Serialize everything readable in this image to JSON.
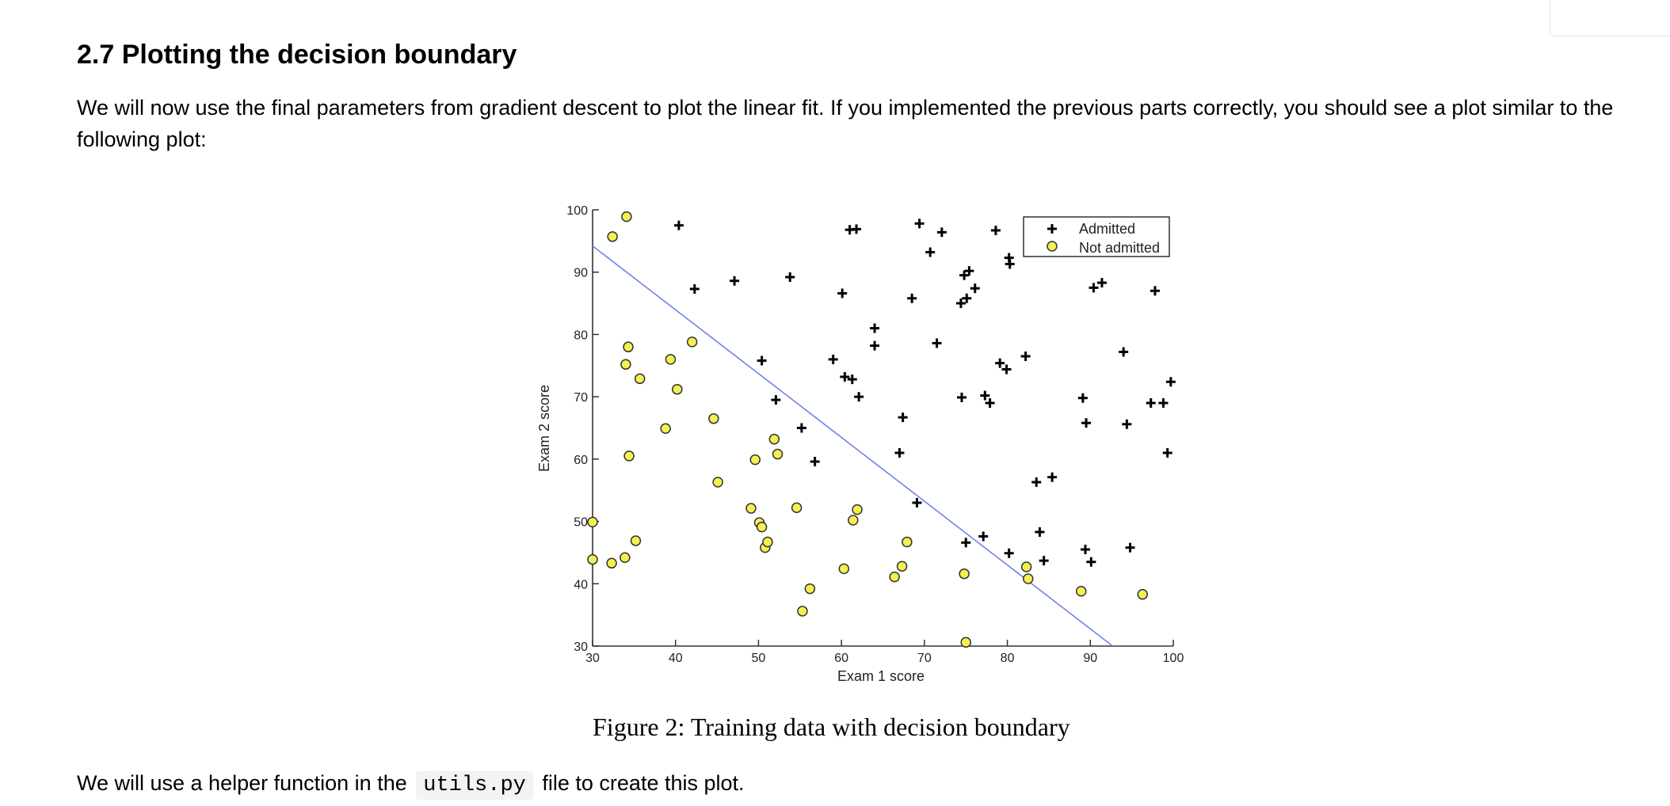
{
  "section": {
    "title": "2.7 Plotting the decision boundary",
    "intro": "We will now use the final parameters from gradient descent to plot the linear fit. If you implemented the previous parts correctly, you should see a plot similar to the following plot:"
  },
  "figure": {
    "caption": "Figure 2: Training data with decision boundary"
  },
  "footer": {
    "before": "We will use a helper function in the",
    "code": "utils.py",
    "after": "file to create this plot."
  },
  "chart_data": {
    "type": "scatter",
    "xlabel": "Exam 1 score",
    "ylabel": "Exam 2 score",
    "xlim": [
      30,
      100
    ],
    "ylim": [
      30,
      100
    ],
    "xticks": [
      30,
      40,
      50,
      60,
      70,
      80,
      90,
      100
    ],
    "yticks": [
      30,
      40,
      50,
      60,
      70,
      80,
      90,
      100
    ],
    "grid": false,
    "legend_position": "top-right",
    "colors": {
      "admitted": "#000000",
      "not_admitted_fill": "#f5f051",
      "not_admitted_edge": "#333333",
      "boundary": "#6f85ee"
    },
    "series": [
      {
        "name": "Admitted",
        "marker": "plus",
        "points": [
          [
            40.4,
            97.5
          ],
          [
            42.3,
            87.3
          ],
          [
            47.1,
            88.6
          ],
          [
            50.4,
            75.8
          ],
          [
            52.1,
            69.5
          ],
          [
            53.8,
            89.2
          ],
          [
            55.2,
            65.0
          ],
          [
            56.8,
            59.6
          ],
          [
            59.0,
            76.0
          ],
          [
            60.1,
            86.6
          ],
          [
            60.4,
            73.2
          ],
          [
            61.3,
            72.8
          ],
          [
            61.0,
            96.8
          ],
          [
            61.8,
            96.9
          ],
          [
            62.1,
            70.0
          ],
          [
            64.0,
            81.0
          ],
          [
            64.0,
            78.2
          ],
          [
            67.0,
            61.0
          ],
          [
            67.4,
            66.7
          ],
          [
            68.5,
            85.8
          ],
          [
            69.1,
            53.0
          ],
          [
            69.4,
            97.8
          ],
          [
            70.7,
            93.2
          ],
          [
            71.5,
            78.6
          ],
          [
            72.1,
            96.4
          ],
          [
            74.5,
            69.9
          ],
          [
            74.4,
            85.0
          ],
          [
            74.8,
            89.5
          ],
          [
            75.4,
            90.2
          ],
          [
            75.1,
            85.8
          ],
          [
            75.0,
            46.6
          ],
          [
            76.1,
            87.4
          ],
          [
            77.1,
            47.6
          ],
          [
            77.3,
            70.2
          ],
          [
            77.9,
            69.0
          ],
          [
            78.6,
            96.7
          ],
          [
            79.1,
            75.4
          ],
          [
            79.9,
            74.4
          ],
          [
            80.2,
            44.9
          ],
          [
            80.2,
            92.3
          ],
          [
            80.3,
            91.3
          ],
          [
            82.2,
            76.5
          ],
          [
            83.5,
            56.3
          ],
          [
            83.9,
            48.3
          ],
          [
            84.4,
            43.7
          ],
          [
            85.4,
            57.1
          ],
          [
            89.1,
            69.8
          ],
          [
            89.4,
            45.5
          ],
          [
            89.5,
            65.8
          ],
          [
            90.1,
            43.5
          ],
          [
            90.4,
            87.5
          ],
          [
            91.4,
            88.3
          ],
          [
            94.0,
            77.2
          ],
          [
            94.4,
            65.6
          ],
          [
            94.8,
            45.8
          ],
          [
            97.3,
            69.0
          ],
          [
            97.8,
            87.0
          ],
          [
            98.8,
            69.0
          ],
          [
            99.3,
            61.0
          ],
          [
            99.7,
            72.4
          ]
        ]
      },
      {
        "name": "Not admitted",
        "marker": "circle",
        "points": [
          [
            30.0,
            43.9
          ],
          [
            30.0,
            49.9
          ],
          [
            32.3,
            43.3
          ],
          [
            32.4,
            95.7
          ],
          [
            33.9,
            44.2
          ],
          [
            34.1,
            98.9
          ],
          [
            34.0,
            75.2
          ],
          [
            34.3,
            78.0
          ],
          [
            34.4,
            60.5
          ],
          [
            35.2,
            46.9
          ],
          [
            35.7,
            72.9
          ],
          [
            38.8,
            64.9
          ],
          [
            39.4,
            76.0
          ],
          [
            40.2,
            71.2
          ],
          [
            42.0,
            78.8
          ],
          [
            44.6,
            66.5
          ],
          [
            45.1,
            56.3
          ],
          [
            49.1,
            52.1
          ],
          [
            49.6,
            59.9
          ],
          [
            50.1,
            49.8
          ],
          [
            50.4,
            49.1
          ],
          [
            50.8,
            45.8
          ],
          [
            51.1,
            46.7
          ],
          [
            51.9,
            63.2
          ],
          [
            52.3,
            60.8
          ],
          [
            54.6,
            52.2
          ],
          [
            55.3,
            35.6
          ],
          [
            56.2,
            39.2
          ],
          [
            60.3,
            42.4
          ],
          [
            61.4,
            50.2
          ],
          [
            61.9,
            51.9
          ],
          [
            66.4,
            41.1
          ],
          [
            67.3,
            42.8
          ],
          [
            67.9,
            46.7
          ],
          [
            74.8,
            41.6
          ],
          [
            75.0,
            30.6
          ],
          [
            82.3,
            42.7
          ],
          [
            82.5,
            40.8
          ],
          [
            88.9,
            38.8
          ],
          [
            96.3,
            38.3
          ]
        ]
      }
    ],
    "decision_boundary": {
      "points": [
        [
          30.0,
          94.2
        ],
        [
          92.7,
          30.0
        ]
      ]
    }
  }
}
